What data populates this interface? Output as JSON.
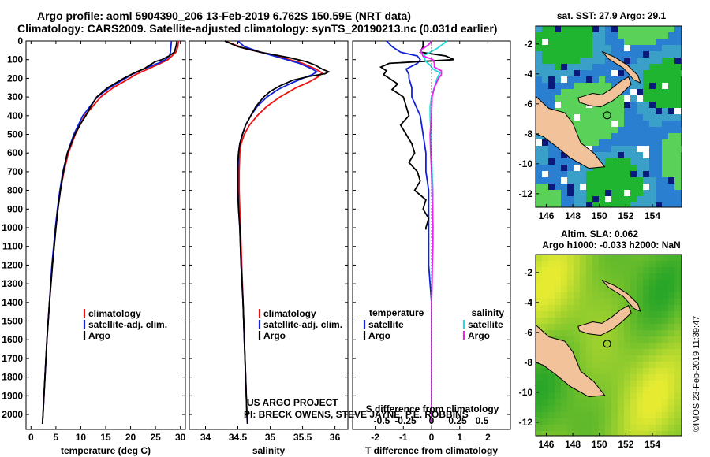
{
  "header": {
    "line1": "Argo profile: aoml 5904390_206 13-Feb-2019 6.762S 150.59E (NRT data)",
    "line2": "Climatology: CARS2009. Satellite-adjusted climatology: synTS_20190213.nc (0.031d earlier)"
  },
  "project": {
    "line1": "US ARGO PROJECT",
    "line2": "PI: BRECK OWENS, STEVE JAYNE, P.E. ROBBINS"
  },
  "credit": "©IMOS 23-Feb-2019 11:39:47",
  "colors": {
    "climatology": "#ee1111",
    "satellite": "#1122dd",
    "argo": "#000000",
    "argo_salinity_diff": "#ee22ee",
    "satellite_salinity_diff": "#22dddd",
    "land": "#f2c29a"
  },
  "chart_data": [
    {
      "type": "line",
      "panel": "temperature",
      "xlabel": "temperature (deg C)",
      "ylabel": "",
      "xlim": [
        -1,
        31
      ],
      "ylim": [
        2080,
        0
      ],
      "xticks": [
        0,
        5,
        10,
        15,
        20,
        25,
        30
      ],
      "xtick_labels": [
        "0",
        "5",
        "10",
        "15",
        "20",
        "25",
        "30"
      ],
      "yticks": [
        0,
        100,
        200,
        300,
        400,
        500,
        600,
        700,
        800,
        900,
        1000,
        1100,
        1200,
        1300,
        1400,
        1500,
        1600,
        1700,
        1800,
        1900,
        2000
      ],
      "ytick_labels": [
        "0",
        "100",
        "200",
        "300",
        "400",
        "500",
        "600",
        "700",
        "800",
        "900",
        "1000",
        "1100",
        "1200",
        "1300",
        "1400",
        "1500",
        "1600",
        "1700",
        "1800",
        "1900",
        "2000"
      ],
      "legend": [
        "climatology",
        "satellite-adj. clim.",
        "Argo"
      ],
      "series": [
        {
          "name": "climatology",
          "depth": [
            0,
            30,
            60,
            80,
            100,
            120,
            150,
            180,
            200,
            250,
            300,
            400,
            500,
            600,
            700,
            800,
            900,
            1000,
            1200,
            1400,
            1600,
            1800,
            2000,
            2050
          ],
          "values": [
            29.6,
            29.5,
            29.1,
            28.3,
            27.5,
            26,
            23.5,
            21,
            19.8,
            16.5,
            14,
            10.8,
            8.9,
            7.5,
            6.6,
            5.9,
            5.4,
            5,
            4.3,
            3.7,
            3.2,
            2.8,
            2.4,
            2.3
          ]
        },
        {
          "name": "satellite",
          "depth": [
            0,
            30,
            60,
            80,
            100,
            120,
            150,
            180,
            200,
            250,
            300,
            400,
            500,
            600,
            700,
            800,
            900,
            1000,
            1200,
            1400,
            1600,
            1800,
            2000,
            2050
          ],
          "values": [
            28.2,
            28.1,
            28,
            27.8,
            27,
            25.5,
            22.6,
            20.2,
            19,
            15.8,
            13.3,
            10.4,
            8.6,
            7.3,
            6.4,
            5.8,
            5.3,
            4.9,
            4.2,
            3.7,
            3.2,
            2.8,
            2.4,
            2.3
          ]
        },
        {
          "name": "Argo",
          "depth": [
            0,
            20,
            40,
            60,
            80,
            100,
            110,
            130,
            150,
            170,
            200,
            250,
            300,
            350,
            400,
            450,
            500,
            600,
            700,
            800,
            900,
            1000,
            1200,
            1400,
            1600,
            1800,
            2000,
            2050
          ],
          "values": [
            29.3,
            29.2,
            29,
            28.8,
            27.7,
            26.3,
            25,
            23.8,
            22.6,
            20.8,
            18.6,
            15.4,
            13.2,
            12,
            11,
            9.8,
            8.8,
            7.3,
            6.5,
            5.9,
            5.4,
            5,
            4.3,
            3.7,
            3.2,
            2.8,
            2.4,
            2.3
          ]
        }
      ]
    },
    {
      "type": "line",
      "panel": "salinity",
      "xlabel": "salinity",
      "xlim": [
        33.75,
        36.2
      ],
      "ylim": [
        2080,
        0
      ],
      "xticks": [
        34,
        34.5,
        35,
        35.5,
        36
      ],
      "xtick_labels": [
        "34",
        "34.5",
        "35",
        "35.5",
        "36"
      ],
      "legend": [
        "climatology",
        "satellite-adj. clim.",
        "Argo"
      ],
      "series": [
        {
          "name": "climatology",
          "depth": [
            0,
            40,
            80,
            120,
            150,
            170,
            190,
            220,
            250,
            300,
            350,
            400,
            450,
            500,
            550,
            600,
            700,
            800,
            900,
            1000,
            1200,
            1400,
            1600,
            1800,
            2000,
            2050
          ],
          "values": [
            34.3,
            34.6,
            35.1,
            35.5,
            35.7,
            35.8,
            35.75,
            35.6,
            35.4,
            35.15,
            34.95,
            34.8,
            34.68,
            34.6,
            34.55,
            34.53,
            34.52,
            34.52,
            34.53,
            34.54,
            34.56,
            34.58,
            34.6,
            34.62,
            34.64,
            34.65
          ]
        },
        {
          "name": "satellite",
          "depth": [
            0,
            30,
            60,
            90,
            120,
            150,
            165,
            180,
            200,
            230,
            260,
            300,
            350,
            400,
            450,
            500,
            550,
            600,
            700,
            800,
            900,
            1000,
            1200,
            1400,
            1600,
            1800,
            2000,
            2050
          ],
          "values": [
            34.5,
            34.6,
            34.85,
            35.15,
            35.45,
            35.65,
            35.72,
            35.65,
            35.5,
            35.3,
            35.12,
            34.95,
            34.8,
            34.7,
            34.62,
            34.57,
            34.53,
            34.51,
            34.5,
            34.5,
            34.51,
            34.53,
            34.55,
            34.58,
            34.6,
            34.62,
            34.64,
            34.65
          ]
        },
        {
          "name": "Argo",
          "depth": [
            0,
            30,
            60,
            90,
            110,
            130,
            150,
            165,
            175,
            190,
            210,
            240,
            270,
            300,
            350,
            400,
            450,
            500,
            550,
            600,
            650,
            700,
            800,
            900,
            1000,
            1200,
            1400,
            1600,
            1800,
            2000,
            2050
          ],
          "values": [
            34.3,
            34.5,
            34.85,
            35.3,
            35.55,
            35.7,
            35.8,
            35.9,
            35.85,
            35.6,
            35.35,
            35.15,
            35,
            34.9,
            34.78,
            34.7,
            34.62,
            34.57,
            34.53,
            34.51,
            34.5,
            34.5,
            34.5,
            34.51,
            34.53,
            34.55,
            34.58,
            34.6,
            34.62,
            34.64,
            34.65
          ]
        }
      ]
    },
    {
      "type": "line",
      "panel": "difference",
      "title": "S difference from climatology",
      "xlabel": "T difference from climatology",
      "xlim": [
        -2.8,
        2.8
      ],
      "ylim": [
        2080,
        0
      ],
      "xticks": [
        -2,
        -1,
        0,
        1,
        2
      ],
      "xtick_labels": [
        "-2",
        "-1",
        "0",
        "1",
        "2"
      ],
      "top_ticks": [
        -0.5,
        -0.25,
        0,
        0.25,
        0.5
      ],
      "top_tick_labels": [
        "-0.5",
        "-0.25",
        "0",
        "0.25",
        "0.5"
      ],
      "legend_left_title": "temperature",
      "legend_right_title": "salinity",
      "legend_left": [
        "satellite",
        "Argo"
      ],
      "legend_right": [
        "satellite",
        "Argo"
      ],
      "series": [
        {
          "name": "satellite temperature",
          "depth": [
            0,
            30,
            60,
            80,
            100,
            120,
            150,
            180,
            200,
            250,
            300,
            400,
            500,
            600,
            700,
            800,
            900,
            1000,
            1200,
            1400,
            1600,
            1800,
            2000,
            2050
          ],
          "values": [
            -1.6,
            -1.4,
            -1.1,
            -0.5,
            -0.4,
            -0.5,
            -0.9,
            -0.8,
            -0.8,
            -0.7,
            -0.7,
            -0.4,
            -0.3,
            -0.2,
            -0.2,
            -0.1,
            -0.1,
            -0.1,
            -0.1,
            0,
            0,
            0,
            0,
            0
          ]
        },
        {
          "name": "Argo temperature",
          "depth": [
            0,
            30,
            60,
            80,
            100,
            120,
            140,
            160,
            180,
            200,
            230,
            260,
            300,
            350,
            400,
            450,
            500,
            550,
            600,
            650,
            700,
            750,
            800,
            850,
            900,
            950,
            1000,
            1010
          ],
          "values": [
            -0.3,
            -0.3,
            -0.4,
            0.5,
            0.8,
            -1.5,
            -1.8,
            -1.6,
            -1.7,
            -1.5,
            -1.2,
            -1.4,
            -1,
            -0.9,
            -0.8,
            -1.1,
            -0.9,
            -0.7,
            -0.6,
            -0.8,
            -0.5,
            -0.4,
            -0.6,
            -0.2,
            -0.3,
            -0.1,
            -0.2,
            -0.2
          ]
        },
        {
          "name": "satellite salinity",
          "depth": [
            0,
            40,
            80,
            110,
            130,
            150,
            170,
            200,
            250,
            300,
            350,
            400,
            500,
            600,
            700,
            800,
            900,
            1000,
            1100,
            1200,
            1300,
            1400,
            1600,
            1800,
            2000,
            2050
          ],
          "values": [
            0.55,
            0.2,
            -0.3,
            -0.2,
            -0.05,
            0.05,
            0.3,
            0.2,
            0.1,
            0,
            -0.05,
            -0.05,
            -0.02,
            0,
            0.02,
            0.05,
            0.05,
            0.05,
            0.03,
            0.02,
            0.01,
            0,
            0,
            0,
            0,
            0
          ]
        },
        {
          "name": "Argo salinity",
          "depth": [
            0,
            20,
            50,
            80,
            100,
            120,
            140,
            160,
            180,
            200,
            250,
            300,
            400,
            500,
            600,
            700,
            800,
            900,
            1000,
            1100,
            1200,
            1300,
            1400,
            1600,
            1800,
            2000,
            2050
          ],
          "values": [
            0,
            -0.1,
            -0.4,
            -0.3,
            0.05,
            0.1,
            0.1,
            0.35,
            0.35,
            0.25,
            0.1,
            0.02,
            0,
            -0.05,
            -0.03,
            0,
            0.02,
            0.03,
            0.05,
            0.05,
            0.03,
            0.02,
            0,
            0,
            0,
            0,
            0
          ]
        }
      ]
    },
    {
      "type": "heatmap",
      "panel": "sst map",
      "title": "sat. SST: 27.9 Argo: 29.1",
      "xlim": [
        145.2,
        156.2
      ],
      "ylim": [
        -12.9,
        -0.8
      ],
      "xticks": [
        146,
        148,
        150,
        152,
        154
      ],
      "xtick_labels": [
        "146",
        "148",
        "150",
        "152",
        "154"
      ],
      "yticks": [
        -2,
        -4,
        -6,
        -8,
        -10,
        -12
      ],
      "ytick_labels": [
        "-2",
        "-4",
        "-6",
        "-8",
        "-10",
        "-12"
      ],
      "profile_lon": 150.59,
      "profile_lat": -6.762
    },
    {
      "type": "heatmap",
      "panel": "sla map",
      "title": "Altim. SLA: 0.062",
      "subtitle": "Argo h1000: -0.033 h2000: NaN",
      "xlim": [
        145.2,
        156.2
      ],
      "ylim": [
        -12.9,
        -0.8
      ],
      "xticks": [
        146,
        148,
        150,
        152,
        154
      ],
      "xtick_labels": [
        "146",
        "148",
        "150",
        "152",
        "154"
      ],
      "yticks": [
        -2,
        -4,
        -6,
        -8,
        -10,
        -12
      ],
      "ytick_labels": [
        "-2",
        "-4",
        "-6",
        "-8",
        "-10",
        "-12"
      ],
      "profile_lon": 150.59,
      "profile_lat": -6.762
    }
  ]
}
